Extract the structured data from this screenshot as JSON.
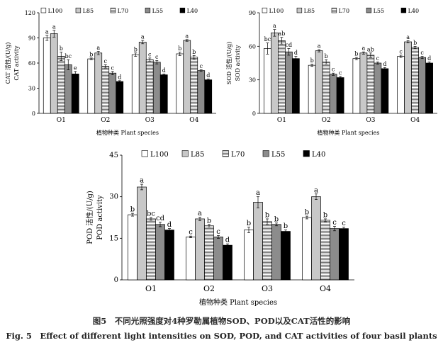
{
  "series_styles": [
    {
      "name": "L100",
      "pattern": "white"
    },
    {
      "name": "L85",
      "pattern": "lightgray"
    },
    {
      "name": "L70",
      "pattern": "hlines"
    },
    {
      "name": "L55",
      "pattern": "darkgray"
    },
    {
      "name": "L40",
      "pattern": "black"
    }
  ],
  "chart_data": [
    {
      "id": "cat",
      "type": "bar",
      "categories": [
        "O1",
        "O2",
        "O3",
        "O4"
      ],
      "ylabel": "CAT 活性/(U/g)",
      "ylabel2": "CAT activity",
      "xlabel": "植物种类 Plant species",
      "ylim": [
        0,
        120
      ],
      "yticks": [
        0,
        30,
        60,
        90,
        120
      ],
      "legend_position": "top",
      "series": [
        {
          "name": "L100",
          "values": [
            90,
            65,
            70,
            71
          ],
          "errors": [
            3,
            1,
            2,
            2
          ],
          "letters": [
            "a",
            "b",
            "b",
            "b"
          ]
        },
        {
          "name": "L85",
          "values": [
            95,
            72,
            85,
            87
          ],
          "errors": [
            4,
            2,
            2,
            1
          ],
          "letters": [
            "a",
            "a",
            "a",
            "a"
          ]
        },
        {
          "name": "L70",
          "values": [
            68,
            56,
            64,
            67
          ],
          "errors": [
            5,
            2,
            2,
            2
          ],
          "letters": [
            "b",
            "c",
            "c",
            "b"
          ]
        },
        {
          "name": "L55",
          "values": [
            58,
            48,
            61,
            51
          ],
          "errors": [
            6,
            2,
            2,
            1
          ],
          "letters": [
            "bc",
            "c",
            "c",
            "c"
          ]
        },
        {
          "name": "L40",
          "values": [
            47,
            38,
            46,
            40
          ],
          "errors": [
            3,
            1,
            1,
            1
          ],
          "letters": [
            "e",
            "d",
            "d",
            "d"
          ]
        }
      ]
    },
    {
      "id": "sod",
      "type": "bar",
      "categories": [
        "O1",
        "O2",
        "O3",
        "O4"
      ],
      "ylabel": "SOD 活性/(U/g)",
      "ylabel2": "SOD activity",
      "xlabel": "植物种类 Plant species",
      "ylim": [
        0,
        90
      ],
      "yticks": [
        0,
        30,
        60,
        90
      ],
      "legend_position": "top",
      "series": [
        {
          "name": "L100",
          "values": [
            58,
            43,
            49,
            51
          ],
          "errors": [
            5,
            1,
            1,
            1
          ],
          "letters": [
            "bc",
            "b",
            "b",
            "c"
          ]
        },
        {
          "name": "L85",
          "values": [
            72,
            56,
            54,
            64
          ],
          "errors": [
            3,
            1,
            1,
            1
          ],
          "letters": [
            "a",
            "a",
            "a",
            "a"
          ]
        },
        {
          "name": "L70",
          "values": [
            65,
            46,
            52,
            59
          ],
          "errors": [
            3,
            2,
            2,
            1
          ],
          "letters": [
            "ab",
            "b",
            "ab",
            "b"
          ]
        },
        {
          "name": "L55",
          "values": [
            55,
            35,
            45,
            50
          ],
          "errors": [
            3,
            1,
            1,
            1
          ],
          "letters": [
            "cd",
            "c",
            "c",
            "c"
          ]
        },
        {
          "name": "L40",
          "values": [
            49,
            32,
            40,
            45
          ],
          "errors": [
            2,
            1,
            1,
            1
          ],
          "letters": [
            "d",
            "c",
            "d",
            "d"
          ]
        }
      ]
    },
    {
      "id": "pod",
      "type": "bar",
      "categories": [
        "O1",
        "O2",
        "O3",
        "O4"
      ],
      "ylabel": "POD 活性/(U/g)",
      "ylabel2": "POD activity",
      "xlabel": "植物种类 Plant species",
      "ylim": [
        0,
        45
      ],
      "yticks": [
        0,
        15,
        30,
        45
      ],
      "legend_position": "top",
      "series": [
        {
          "name": "L100",
          "values": [
            23.5,
            15.5,
            18,
            22.5
          ],
          "errors": [
            0.5,
            0.3,
            1,
            0.5
          ],
          "letters": [
            "b",
            "c",
            "b",
            "b"
          ]
        },
        {
          "name": "L85",
          "values": [
            33.5,
            22,
            28,
            30
          ],
          "errors": [
            1,
            0.6,
            2,
            1
          ],
          "letters": [
            "a",
            "a",
            "a",
            "a"
          ]
        },
        {
          "name": "L70",
          "values": [
            22,
            19.5,
            21,
            21.5
          ],
          "errors": [
            0.5,
            0.5,
            1,
            0.5
          ],
          "letters": [
            "bc",
            "b",
            "b",
            "b"
          ]
        },
        {
          "name": "L55",
          "values": [
            20,
            15.5,
            20,
            18.5
          ],
          "errors": [
            0.8,
            0.5,
            0.5,
            0.8
          ],
          "letters": [
            "cd",
            "c",
            "b",
            "c"
          ]
        },
        {
          "name": "L40",
          "values": [
            18,
            12.5,
            17.5,
            18.5
          ],
          "errors": [
            0.5,
            0.5,
            0.5,
            0.5
          ],
          "letters": [
            "d",
            "d",
            "b",
            "c"
          ]
        }
      ]
    }
  ],
  "caption": {
    "cn": "图5　不同光照强度对4种罗勒属植物SOD、POD以及CAT活性的影响",
    "en": "Fig. 5　Effect of different light intensities on SOD, POD, and CAT activities of four basil plants"
  }
}
